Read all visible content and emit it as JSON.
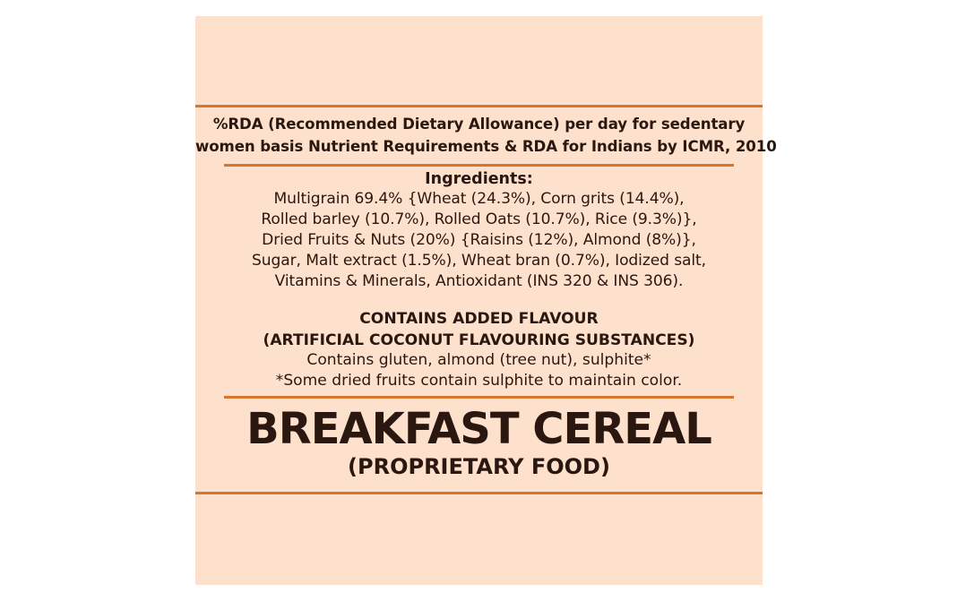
{
  "rda_note": {
    "line1": "%RDA (Recommended Dietary Allowance) per day for sedentary",
    "line2": "women basis Nutrient Requirements & RDA for Indians by ICMR, 2010"
  },
  "ingredients": {
    "title": "Ingredients:",
    "lines": [
      "Multigrain 69.4% {Wheat (24.3%), Corn grits (14.4%),",
      "Rolled barley (10.7%), Rolled Oats (10.7%), Rice (9.3%)},",
      "Dried Fruits & Nuts (20%) {Raisins (12%), Almond (8%)},",
      "Sugar, Malt extract (1.5%), Wheat bran (0.7%), Iodized salt,",
      "Vitamins & Minerals, Antioxidant (INS 320 & INS 306)."
    ]
  },
  "flavour": {
    "line1": "CONTAINS ADDED FLAVOUR",
    "line2": "(ARTIFICIAL COCONUT FLAVOURING SUBSTANCES)"
  },
  "allergen": {
    "line1": "Contains gluten, almond (tree nut), sulphite*",
    "line2": "*Some dried fruits contain sulphite to maintain color."
  },
  "product": {
    "name": "BREAKFAST CEREAL",
    "category": "(PROPRIETARY FOOD)"
  },
  "colors": {
    "background": "#fde1cc",
    "rule": "#d9742e",
    "text": "#2a1810"
  }
}
